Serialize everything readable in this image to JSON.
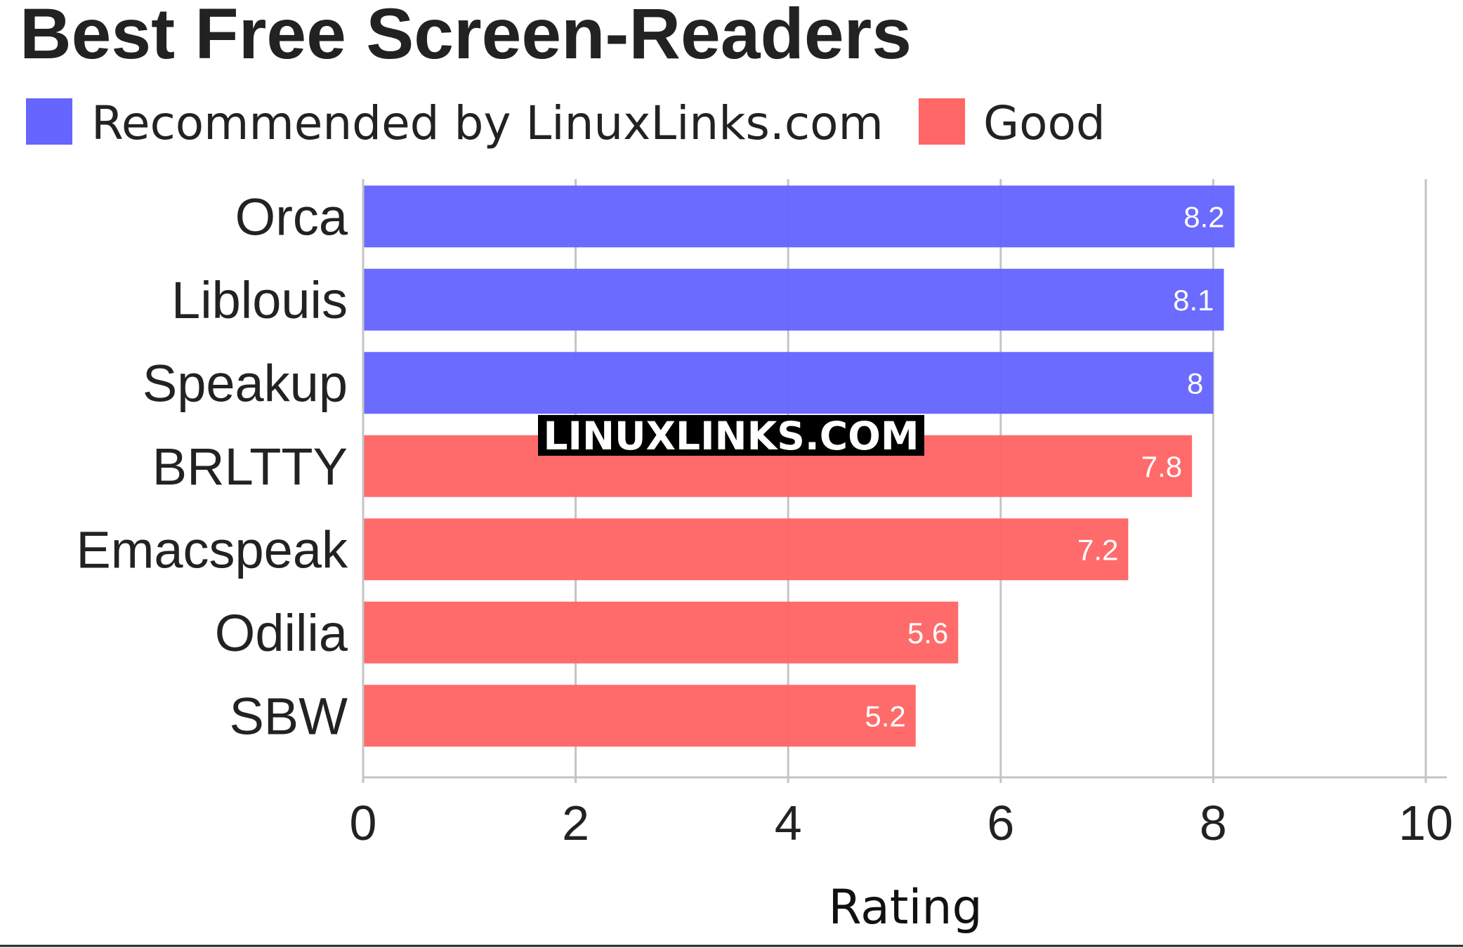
{
  "chart_data": {
    "type": "bar",
    "orientation": "horizontal",
    "title": "Best Free Screen-Readers",
    "categories": [
      "Orca",
      "Liblouis",
      "Speakup",
      "BRLTTY",
      "Emacspeak",
      "Odilia",
      "SBW"
    ],
    "values": [
      8.2,
      8.1,
      8,
      7.8,
      7.2,
      5.6,
      5.2
    ],
    "value_labels": [
      "8.2",
      "8.1",
      "8",
      "7.8",
      "7.2",
      "5.6",
      "5.2"
    ],
    "groups": [
      "Recommended by LinuxLinks.com",
      "Recommended by LinuxLinks.com",
      "Recommended by LinuxLinks.com",
      "Good",
      "Good",
      "Good",
      "Good"
    ],
    "legend": {
      "placement": "top-left",
      "entries": [
        {
          "name": "Recommended by LinuxLinks.com",
          "color": "#6666ff"
        },
        {
          "name": "Good",
          "color": "#ff6666"
        }
      ]
    },
    "xlabel": "Rating",
    "ylabel": "",
    "xlim": [
      0,
      10
    ],
    "xticks": [
      "0",
      "2",
      "4",
      "6",
      "8",
      "10"
    ],
    "grid": true
  },
  "watermark": "LINUXLINKS.COM"
}
